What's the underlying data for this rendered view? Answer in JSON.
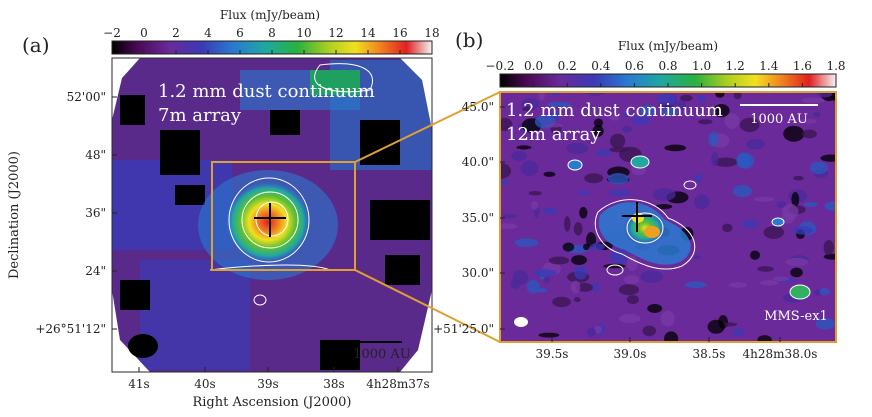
{
  "panel_a": {
    "label": "(a)",
    "colorbar_title": "Flux (mJy/beam)",
    "colorbar_ticks": [
      "−2",
      "0",
      "2",
      "4",
      "6",
      "8",
      "10",
      "12",
      "14",
      "16",
      "18"
    ],
    "overlay_line1": "1.2 mm dust continuum",
    "overlay_line2": "7m array",
    "scalebar_label": "1000 AU",
    "y_axis_title": "Declination (J2000)",
    "x_axis_title": "Right Ascension (J2000)",
    "y_ticks": [
      "52'00\"",
      "48\"",
      "36\"",
      "24\"",
      "+26°51'12\""
    ],
    "x_ticks": [
      "41s",
      "40s",
      "39s",
      "38s",
      "4h28m37s"
    ]
  },
  "panel_b": {
    "label": "(b)",
    "colorbar_title": "Flux (mJy/beam)",
    "colorbar_ticks": [
      "−0.2",
      "0.0",
      "0.2",
      "0.4",
      "0.6",
      "0.8",
      "1.0",
      "1.2",
      "1.4",
      "1.6",
      "1.8"
    ],
    "overlay_line1": "1.2 mm dust continuum",
    "overlay_line2": "12m array",
    "scalebar_label": "1000 AU",
    "source_label": "MMS-ex1",
    "y_ticks": [
      "45.0\"",
      "40.0\"",
      "35.0\"",
      "30.0\"",
      "+51'25.0\""
    ],
    "x_ticks": [
      "39.5s",
      "39.0s",
      "38.5s",
      "4h28m38.0s"
    ]
  },
  "colors": {
    "zoom_box": "#e0a030",
    "frame": "#2a2a2a"
  }
}
